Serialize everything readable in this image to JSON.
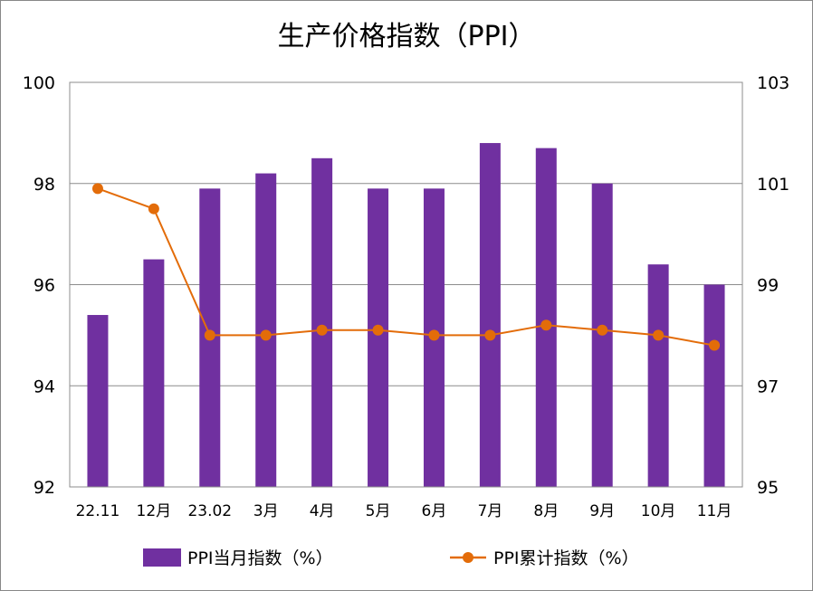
{
  "chart_data": {
    "type": "bar+line",
    "title": "生产价格指数（PPI）",
    "categories": [
      "22.11",
      "12月",
      "23.02",
      "3月",
      "4月",
      "5月",
      "6月",
      "7月",
      "8月",
      "9月",
      "10月",
      "11月"
    ],
    "series": [
      {
        "name": "PPI当月指数（%）",
        "type": "bar",
        "axis": "left",
        "color": "#7030A0",
        "values": [
          95.4,
          96.5,
          97.9,
          98.2,
          98.5,
          97.9,
          97.9,
          98.8,
          98.7,
          98.0,
          96.4,
          96.0
        ]
      },
      {
        "name": "PPI累计指数（%）",
        "type": "line",
        "axis": "right",
        "color": "#E36C09",
        "values": [
          100.9,
          100.5,
          98.0,
          98.0,
          98.1,
          98.1,
          98.0,
          98.0,
          98.2,
          98.1,
          98.0,
          97.8
        ]
      }
    ],
    "y_left": {
      "min": 92,
      "max": 100,
      "ticks": [
        92,
        94,
        96,
        98,
        100
      ]
    },
    "y_right": {
      "min": 95,
      "max": 103,
      "ticks": [
        95,
        97,
        99,
        101,
        103
      ]
    },
    "grid": true,
    "legend_position": "bottom"
  }
}
